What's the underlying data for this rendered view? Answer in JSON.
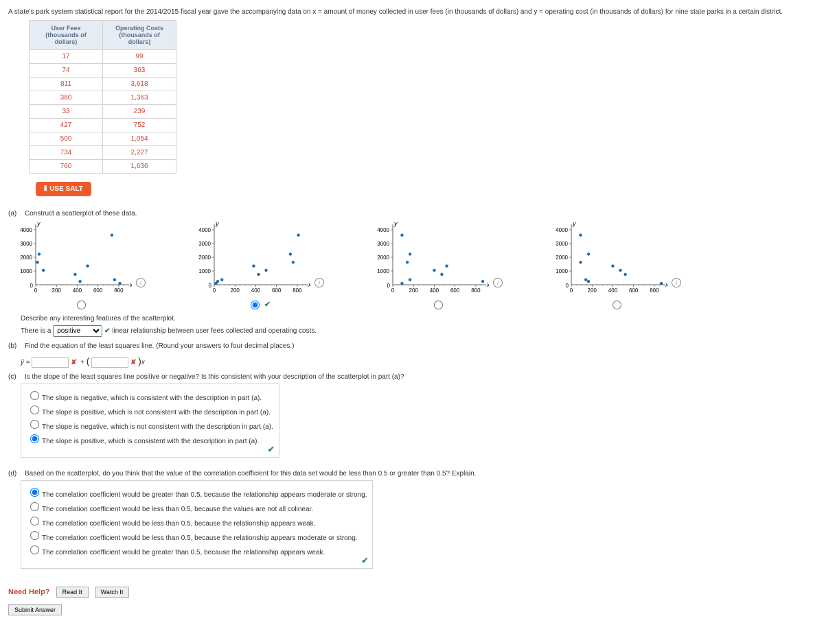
{
  "intro_text": "A state's park system statistical report for the 2014/2015 fiscal year gave the accompanying data on x = amount of money collected in user fees (in thousands of dollars) and y = operating cost (in thousands of dollars) for nine state parks in a certain district.",
  "table": {
    "col1_header": "User Fees (thousands of dollars)",
    "col2_header": "Operating Costs (thousands of dollars)",
    "rows": [
      [
        "17",
        "99"
      ],
      [
        "74",
        "363"
      ],
      [
        "811",
        "3,618"
      ],
      [
        "380",
        "1,363"
      ],
      [
        "33",
        "239"
      ],
      [
        "427",
        "752"
      ],
      [
        "500",
        "1,054"
      ],
      [
        "734",
        "2,227"
      ],
      [
        "760",
        "1,636"
      ]
    ]
  },
  "salt_label": "USE SALT",
  "partA": {
    "letter": "(a)",
    "prompt": "Construct a scatterplot of these data.",
    "y_label": "y",
    "x_label": "x",
    "xlim": [
      0,
      900
    ],
    "ylim": [
      0,
      4400
    ],
    "xticks": [
      0,
      200,
      400,
      600,
      800
    ],
    "yticks": [
      1000,
      2000,
      3000,
      4000
    ],
    "point_color": "#1f6db1",
    "point_r": 2.2,
    "plots": [
      {
        "selected": false,
        "mark": null,
        "pts": [
          [
            17,
            1636
          ],
          [
            33,
            2227
          ],
          [
            74,
            1054
          ],
          [
            380,
            752
          ],
          [
            427,
            239
          ],
          [
            500,
            1363
          ],
          [
            734,
            3618
          ],
          [
            760,
            363
          ],
          [
            811,
            99
          ]
        ]
      },
      {
        "selected": true,
        "mark": "correct",
        "pts": [
          [
            17,
            99
          ],
          [
            74,
            363
          ],
          [
            811,
            3618
          ],
          [
            380,
            1363
          ],
          [
            33,
            239
          ],
          [
            427,
            752
          ],
          [
            500,
            1054
          ],
          [
            734,
            2227
          ],
          [
            760,
            1636
          ]
        ]
      },
      {
        "selected": false,
        "mark": null,
        "pts": [
          [
            89,
            99
          ],
          [
            166,
            363
          ],
          [
            89,
            3618
          ],
          [
            520,
            1363
          ],
          [
            867,
            239
          ],
          [
            473,
            752
          ],
          [
            400,
            1054
          ],
          [
            166,
            2227
          ],
          [
            140,
            1636
          ]
        ]
      },
      {
        "selected": false,
        "mark": null,
        "pts": [
          [
            89,
            3618
          ],
          [
            166,
            2227
          ],
          [
            89,
            1636
          ],
          [
            400,
            1363
          ],
          [
            473,
            1054
          ],
          [
            520,
            752
          ],
          [
            140,
            363
          ],
          [
            166,
            239
          ],
          [
            867,
            99
          ]
        ]
      }
    ]
  },
  "describe": {
    "line1": "Describe any interesting features of the scatterplot.",
    "line2_pre": "There is a ",
    "selected": "positive",
    "options": [
      "---Select---",
      "positive",
      "negative",
      "no"
    ],
    "line2_post": " linear relationship between user fees collected and operating costs."
  },
  "partB": {
    "letter": "(b)",
    "prompt": "Find the equation of the least squares line. (Round your answers to four decimal places.)",
    "yhat": "ŷ =",
    "input1": "",
    "input2": "",
    "after": "x"
  },
  "partC": {
    "letter": "(c)",
    "prompt": "Is the slope of the least squares line positive or negative? Is this consistent with your description of the scatterplot in part (a)?",
    "options": [
      "The slope is negative, which is consistent with the description in part (a).",
      "The slope is positive, which is not consistent with the description in part (a).",
      "The slope is negative, which is not consistent with the description in part (a).",
      "The slope is positive, which is consistent with the description in part (a)."
    ],
    "selected": 3
  },
  "partD": {
    "letter": "(d)",
    "prompt": "Based on the scatterplot, do you think that the value of the correlation coefficient for this data set would be less than 0.5 or greater than 0.5? Explain.",
    "options": [
      "The correlation coefficient would be greater than 0.5, because the relationship appears moderate or strong.",
      "The correlation coefficient would be less than 0.5, because the values are not all colinear.",
      "The correlation coefficient would be less than 0.5, because the relationship appears weak.",
      "The correlation coefficient would be less than 0.5, because the relationship appears moderate or strong.",
      "The correlation coefficient would be greater than 0.5, because the relationship appears weak."
    ],
    "selected": 0
  },
  "need_help": {
    "label": "Need Help?",
    "read": "Read It",
    "watch": "Watch It"
  },
  "submit": "Submit Answer"
}
